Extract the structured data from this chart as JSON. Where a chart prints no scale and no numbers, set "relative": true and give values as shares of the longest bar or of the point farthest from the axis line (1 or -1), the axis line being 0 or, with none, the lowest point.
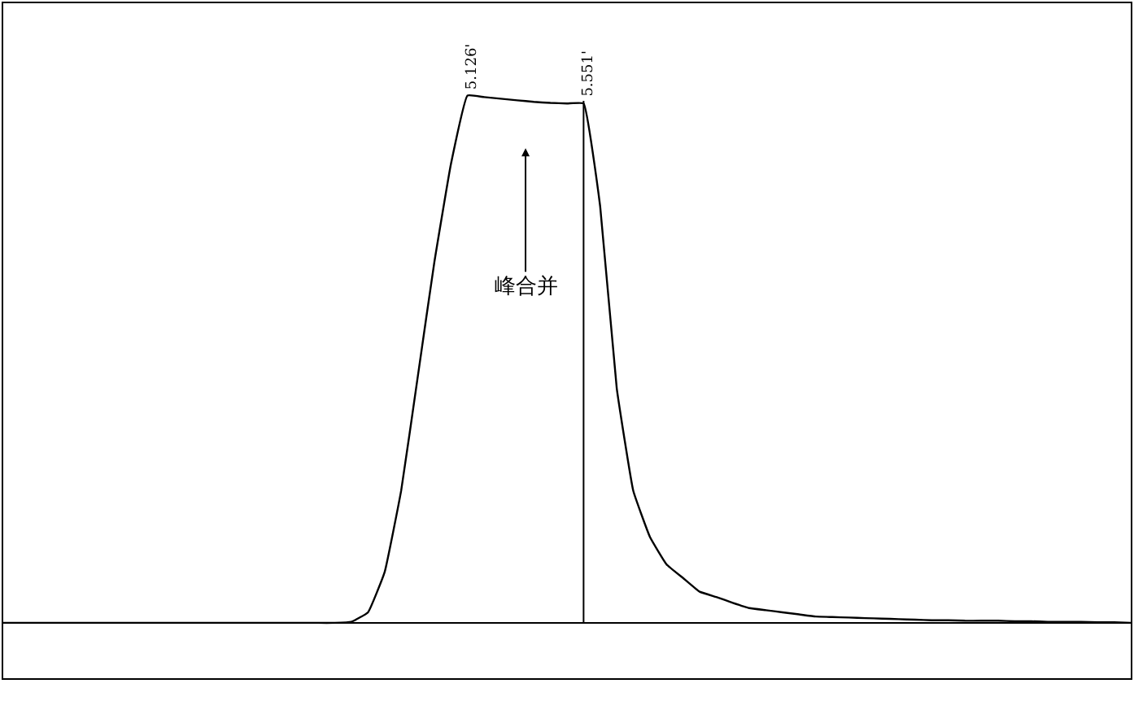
{
  "chart_data": {
    "type": "line",
    "relative": true,
    "tick_labels": false,
    "color": "#000000",
    "categories": [
      null,
      null,
      null,
      null,
      null,
      null,
      null,
      null,
      null,
      null,
      null,
      null,
      null,
      null,
      null,
      null,
      null,
      null,
      null,
      null,
      null,
      null,
      null,
      null,
      null,
      null,
      null,
      null,
      null,
      null,
      null,
      null,
      null,
      null,
      null,
      null,
      null,
      null,
      null,
      null,
      null,
      null,
      null,
      null,
      null,
      null,
      null,
      null,
      null,
      null,
      null,
      null,
      null,
      null,
      null,
      null,
      null,
      null,
      null,
      null,
      null,
      null,
      null,
      null,
      null,
      null,
      null,
      null,
      null
    ],
    "values": [
      0,
      0,
      0,
      0,
      0,
      0,
      0,
      0,
      0,
      0,
      0,
      0,
      0,
      0,
      0,
      0,
      0,
      0,
      0,
      0,
      0,
      0.002,
      0.02,
      0.096,
      0.251,
      0.467,
      0.684,
      0.87,
      1.0,
      0.997,
      0.994,
      0.991,
      0.988,
      0.986,
      0.985,
      0.985,
      0.79,
      0.445,
      0.25,
      0.163,
      0.111,
      0.085,
      0.059,
      0.049,
      0.038,
      0.028,
      0.024,
      0.02,
      0.016,
      0.012,
      0.011,
      0.01,
      0.009,
      0.008,
      0.007,
      0.006,
      0.005,
      0.005,
      0.004,
      0.004,
      0.004,
      0.003,
      0.003,
      0.002,
      0.002,
      0.002,
      0.001,
      0.001,
      0
    ],
    "annotations": [
      "5.126'",
      "5.551'",
      "峰合并"
    ]
  }
}
